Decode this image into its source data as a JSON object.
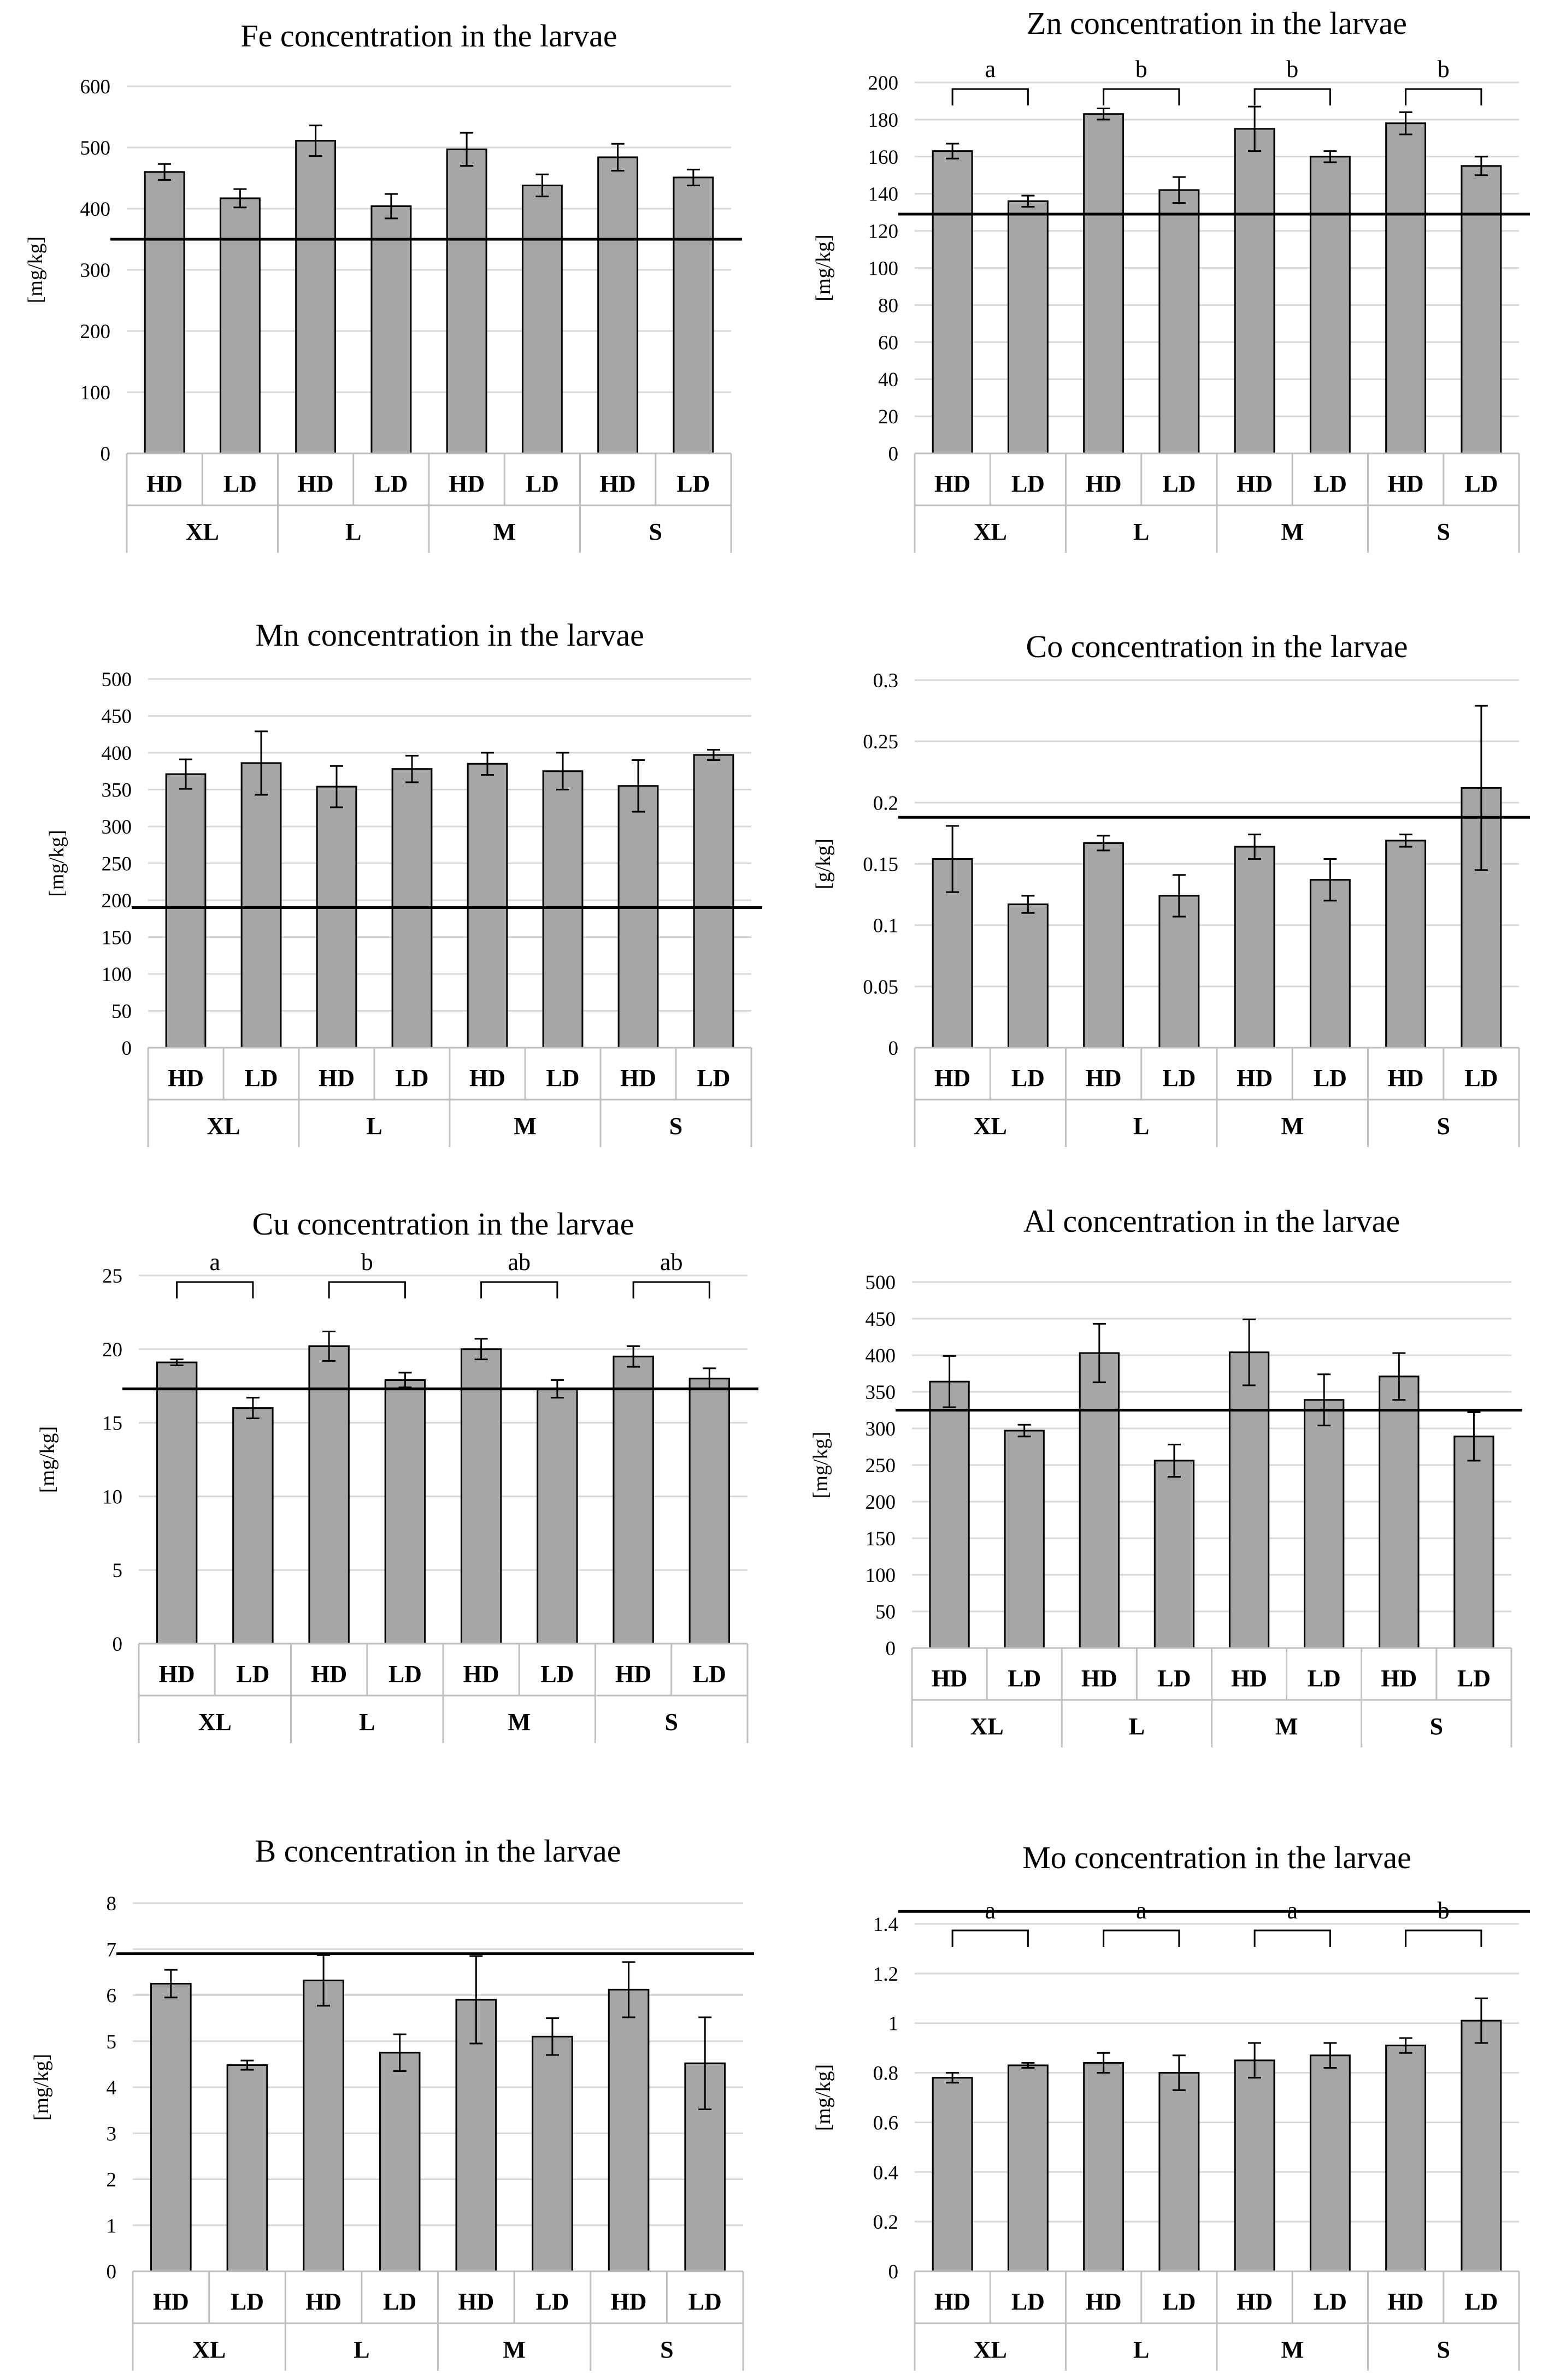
{
  "colors": {
    "bar": "#a6a6a6",
    "bar_stroke": "#000000",
    "grid": "#d9d9d9",
    "axis": "#bfbfbf",
    "text": "#000000"
  },
  "chart_data": [
    {
      "id": "fe",
      "type": "bar",
      "title": "Fe concentration in the larvae",
      "ylabel": "[mg/kg]",
      "ylim": [
        0,
        600
      ],
      "yticks": [
        0,
        100,
        200,
        300,
        400,
        500,
        600
      ],
      "reference_line": 350,
      "groups": [
        "XL",
        "L",
        "M",
        "S"
      ],
      "categories": [
        "HD",
        "LD",
        "HD",
        "LD",
        "HD",
        "LD",
        "HD",
        "LD"
      ],
      "values": [
        460,
        417,
        511,
        404,
        497,
        438,
        484,
        451
      ],
      "errors": [
        13,
        15,
        25,
        20,
        27,
        18,
        22,
        13
      ],
      "significance": []
    },
    {
      "id": "zn",
      "type": "bar",
      "title": "Zn concentration in the larvae",
      "ylabel": "[mg/kg]",
      "ylim": [
        0,
        200
      ],
      "yticks": [
        0,
        20,
        40,
        60,
        80,
        100,
        120,
        140,
        160,
        180,
        200
      ],
      "reference_line": 129,
      "groups": [
        "XL",
        "L",
        "M",
        "S"
      ],
      "categories": [
        "HD",
        "LD",
        "HD",
        "LD",
        "HD",
        "LD",
        "HD",
        "LD"
      ],
      "values": [
        163,
        136,
        183,
        142,
        175,
        160,
        178,
        155
      ],
      "errors": [
        4,
        3,
        3,
        7,
        12,
        3,
        6,
        5
      ],
      "significance": [
        "a",
        "b",
        "b",
        "b"
      ]
    },
    {
      "id": "mn",
      "type": "bar",
      "title": "Mn concentration in the larvae",
      "ylabel": "[mg/kg]",
      "ylim": [
        0,
        500
      ],
      "yticks": [
        0,
        50,
        100,
        150,
        200,
        250,
        300,
        350,
        400,
        450,
        500
      ],
      "reference_line": 190,
      "groups": [
        "XL",
        "L",
        "M",
        "S"
      ],
      "categories": [
        "HD",
        "LD",
        "HD",
        "LD",
        "HD",
        "LD",
        "HD",
        "LD"
      ],
      "values": [
        371,
        386,
        354,
        378,
        385,
        375,
        355,
        397
      ],
      "errors": [
        20,
        43,
        28,
        18,
        15,
        25,
        35,
        7
      ],
      "significance": []
    },
    {
      "id": "co",
      "type": "bar",
      "title": "Co concentration in the larvae",
      "ylabel": "[g/kg]",
      "ylim": [
        0,
        0.3
      ],
      "yticks": [
        0,
        0.05,
        0.1,
        0.15,
        0.2,
        0.25,
        0.3
      ],
      "reference_line": 0.188,
      "groups": [
        "XL",
        "L",
        "M",
        "S"
      ],
      "categories": [
        "HD",
        "LD",
        "HD",
        "LD",
        "HD",
        "LD",
        "HD",
        "LD"
      ],
      "values": [
        0.154,
        0.117,
        0.167,
        0.124,
        0.164,
        0.137,
        0.169,
        0.212
      ],
      "errors": [
        0.027,
        0.007,
        0.006,
        0.017,
        0.01,
        0.017,
        0.005,
        0.067
      ],
      "significance": []
    },
    {
      "id": "cu",
      "type": "bar",
      "title": "Cu concentration in the larvae",
      "ylabel": "[mg/kg]",
      "ylim": [
        0,
        25
      ],
      "yticks": [
        0,
        5,
        10,
        15,
        20,
        25
      ],
      "reference_line": 17.3,
      "groups": [
        "XL",
        "L",
        "M",
        "S"
      ],
      "categories": [
        "HD",
        "LD",
        "HD",
        "LD",
        "HD",
        "LD",
        "HD",
        "LD"
      ],
      "values": [
        19.1,
        16.0,
        20.2,
        17.9,
        20.0,
        17.3,
        19.5,
        18.0
      ],
      "errors": [
        0.2,
        0.7,
        1.0,
        0.5,
        0.7,
        0.6,
        0.7,
        0.7
      ],
      "significance": [
        "a",
        "b",
        "ab",
        "ab"
      ]
    },
    {
      "id": "al",
      "type": "bar",
      "title": "Al concentration in the larvae",
      "ylabel": "[mg/kg]",
      "ylim": [
        0,
        500
      ],
      "yticks": [
        0,
        50,
        100,
        150,
        200,
        250,
        300,
        350,
        400,
        450,
        500
      ],
      "reference_line": 325,
      "groups": [
        "XL",
        "L",
        "M",
        "S"
      ],
      "categories": [
        "HD",
        "LD",
        "HD",
        "LD",
        "HD",
        "LD",
        "HD",
        "LD"
      ],
      "values": [
        364,
        297,
        403,
        256,
        404,
        339,
        371,
        289
      ],
      "errors": [
        35,
        8,
        40,
        22,
        45,
        35,
        32,
        33
      ],
      "significance": []
    },
    {
      "id": "b",
      "type": "bar",
      "title": "B concentration in the larvae",
      "ylabel": "[mg/kg]",
      "ylim": [
        0,
        8
      ],
      "yticks": [
        0,
        1,
        2,
        3,
        4,
        5,
        6,
        7,
        8
      ],
      "reference_line": 6.9,
      "groups": [
        "XL",
        "L",
        "M",
        "S"
      ],
      "categories": [
        "HD",
        "LD",
        "HD",
        "LD",
        "HD",
        "LD",
        "HD",
        "LD"
      ],
      "values": [
        6.25,
        4.48,
        6.32,
        4.75,
        5.9,
        5.1,
        6.12,
        4.52
      ],
      "errors": [
        0.3,
        0.1,
        0.55,
        0.4,
        0.95,
        0.4,
        0.6,
        1.0
      ],
      "significance": []
    },
    {
      "id": "mo",
      "type": "bar",
      "title": "Mo concentration in the larvae",
      "ylabel": "[mg/kg]",
      "ylim": [
        0,
        1.4
      ],
      "yticks": [
        0,
        0.2,
        0.4,
        0.6,
        0.8,
        1,
        1.2,
        1.4
      ],
      "reference_line": 1.45,
      "groups": [
        "XL",
        "L",
        "M",
        "S"
      ],
      "categories": [
        "HD",
        "LD",
        "HD",
        "LD",
        "HD",
        "LD",
        "HD",
        "LD"
      ],
      "values": [
        0.78,
        0.83,
        0.84,
        0.8,
        0.85,
        0.87,
        0.91,
        1.01
      ],
      "errors": [
        0.02,
        0.01,
        0.04,
        0.07,
        0.07,
        0.05,
        0.03,
        0.09
      ],
      "significance": [
        "a",
        "a",
        "a",
        "b"
      ]
    }
  ]
}
